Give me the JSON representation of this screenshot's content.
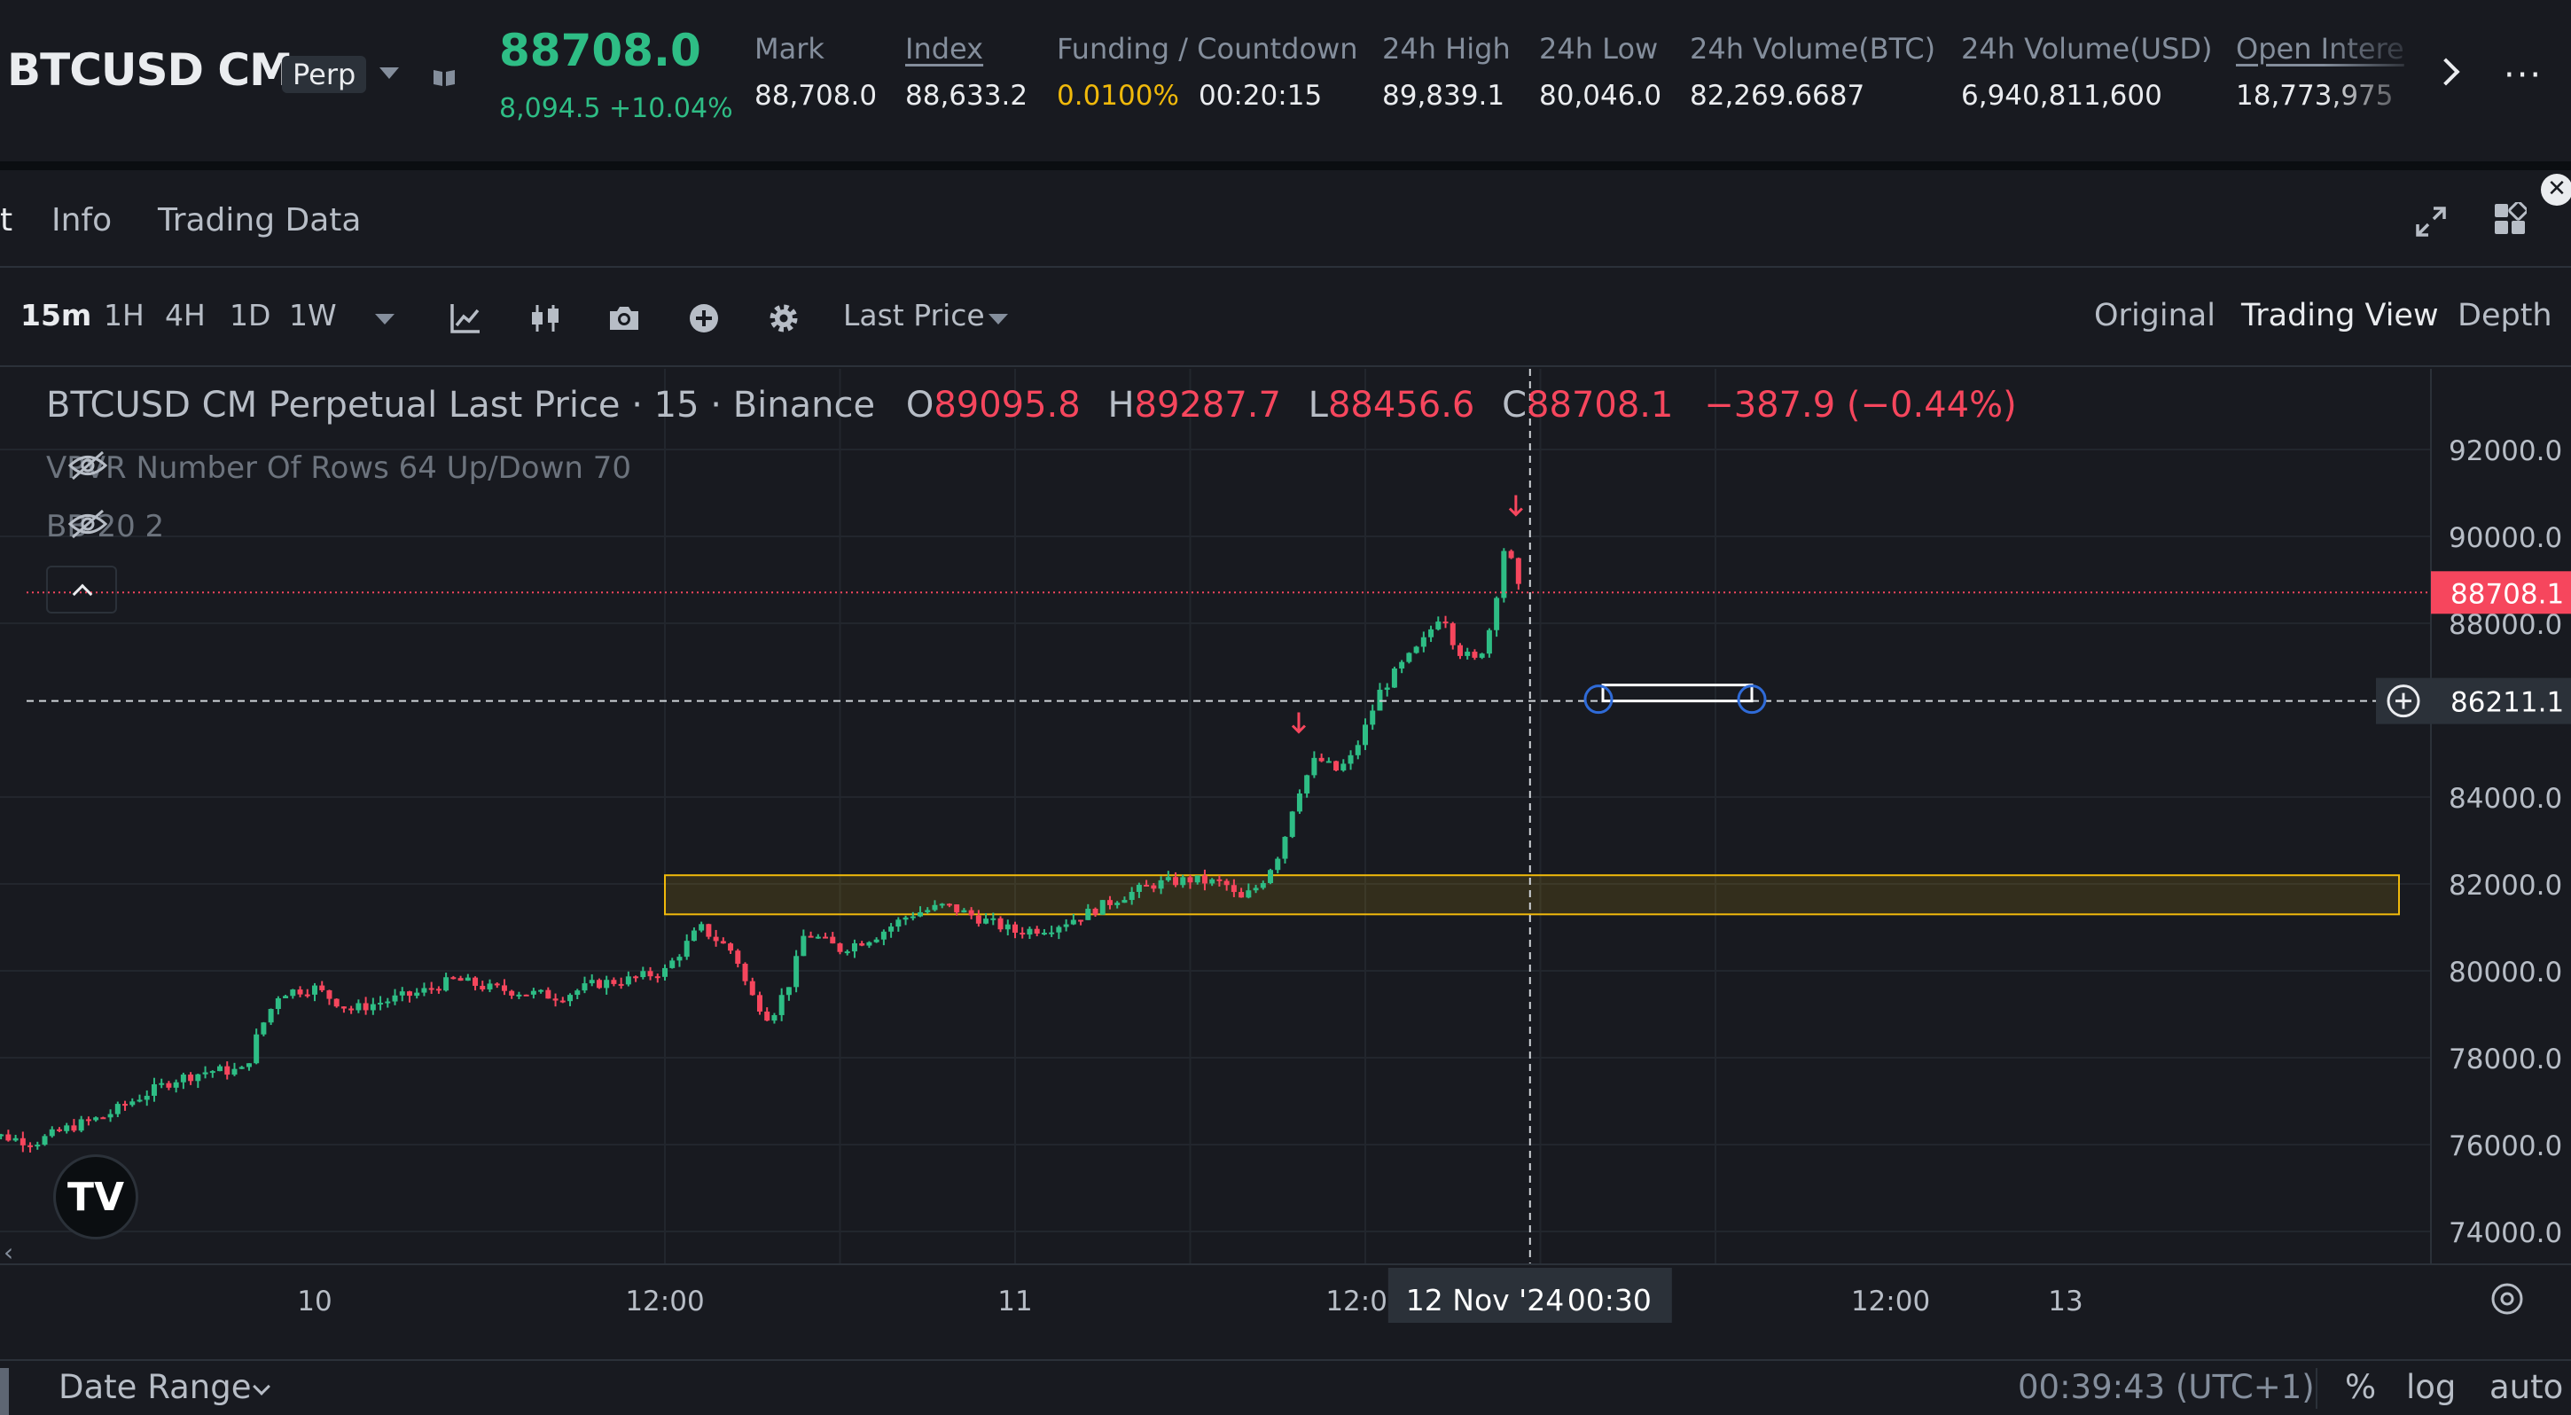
{
  "header": {
    "symbol": "BTCUSD CM",
    "badge": "Perp",
    "last_price": "88708.0",
    "change": "8,094.5 +10.04%",
    "stats": [
      {
        "label": "Mark",
        "value": "88,708.0"
      },
      {
        "label": "Index",
        "value": "88,633.2"
      },
      {
        "label": "Funding / Countdown",
        "value": "0.0100%",
        "value2": "00:20:15"
      },
      {
        "label": "24h High",
        "value": "89,839.1"
      },
      {
        "label": "24h Low",
        "value": "80,046.0"
      },
      {
        "label": "24h Volume(BTC)",
        "value": "82,269.6687"
      },
      {
        "label": "24h Volume(USD)",
        "value": "6,940,811,600"
      },
      {
        "label": "Open Intere",
        "value": "18,773,975"
      }
    ]
  },
  "tabs": [
    "t",
    "Info",
    "Trading Data"
  ],
  "toolbar": {
    "timeframes": [
      "15m",
      "1H",
      "4H",
      "1D",
      "1W"
    ],
    "active_timeframe": "15m",
    "price_type": "Last Price",
    "views": [
      "Original",
      "Trading View",
      "Depth"
    ],
    "active_view": "Trading View",
    "icons": [
      "indicator-icon",
      "candle-type-icon",
      "camera-icon",
      "plus-circle-icon",
      "gear-icon"
    ]
  },
  "legend": {
    "title": "BTCUSD CM Perpetual Last Price · 15 · Binance",
    "o_label": "O",
    "o": "89095.8",
    "h_label": "H",
    "h": "89287.7",
    "l_label": "L",
    "l": "88456.6",
    "c_label": "C",
    "c": "88708.1",
    "change": "−387.9 (−0.44%)"
  },
  "indicators": [
    {
      "label": "VPVR Number Of Rows 64 Up/Down 70"
    },
    {
      "label": "BB 20 2"
    }
  ],
  "chart_data": {
    "type": "candlestick",
    "interval": "15m",
    "y_ticks": [
      92000,
      90000,
      88000,
      84000,
      82000,
      80000,
      78000,
      76000,
      74000
    ],
    "y_tick_labels": [
      "92000.0",
      "90000.0",
      "88000.0",
      "84000.0",
      "82000.0",
      "80000.0",
      "78000.0",
      "76000.0",
      "74000.0"
    ],
    "x_tick_labels": [
      "10",
      "12:00",
      "11",
      "12:00",
      "12 Nov '24",
      "00:30",
      "12:00",
      "13"
    ],
    "last_price": 88708.1,
    "last_price_label": "88708.1",
    "crosshair_price": 86211.1,
    "crosshair_price_label": "86211.1",
    "crosshair_time_label": "12 Nov '24",
    "crosshair_time_extra": "00:30",
    "highlight_zone": {
      "low": 81300,
      "high": 82200
    },
    "close_path": [
      [
        0,
        76350
      ],
      [
        0.05,
        76200
      ],
      [
        0.1,
        76050
      ],
      [
        0.15,
        76400
      ],
      [
        0.2,
        76650
      ],
      [
        0.25,
        77100
      ],
      [
        0.3,
        77500
      ],
      [
        0.35,
        77700
      ],
      [
        0.4,
        77700
      ],
      [
        0.42,
        78600
      ],
      [
        0.45,
        79500
      ],
      [
        0.5,
        79600
      ],
      [
        0.55,
        79100
      ],
      [
        0.6,
        79300
      ],
      [
        0.65,
        79500
      ],
      [
        0.7,
        79800
      ],
      [
        0.75,
        79600
      ],
      [
        0.8,
        79500
      ],
      [
        0.85,
        79400
      ],
      [
        0.9,
        79700
      ],
      [
        0.95,
        79800
      ],
      [
        1.0,
        80000
      ],
      [
        1.05,
        81000
      ],
      [
        1.1,
        80400
      ],
      [
        1.12,
        79500
      ],
      [
        1.15,
        78900
      ],
      [
        1.18,
        79800
      ],
      [
        1.2,
        80900
      ],
      [
        1.25,
        80500
      ],
      [
        1.3,
        80800
      ],
      [
        1.35,
        81300
      ],
      [
        1.4,
        81500
      ],
      [
        1.45,
        81200
      ],
      [
        1.5,
        80900
      ],
      [
        1.55,
        81000
      ],
      [
        1.6,
        81300
      ],
      [
        1.65,
        81700
      ],
      [
        1.7,
        82000
      ],
      [
        1.75,
        82100
      ],
      [
        1.8,
        82000
      ],
      [
        1.82,
        81600
      ],
      [
        1.85,
        82000
      ],
      [
        1.88,
        82800
      ],
      [
        1.9,
        84000
      ],
      [
        1.93,
        84900
      ],
      [
        1.96,
        84600
      ],
      [
        1.98,
        84900
      ],
      [
        2.0,
        85600
      ],
      [
        2.02,
        86400
      ],
      [
        2.05,
        87000
      ],
      [
        2.08,
        87500
      ],
      [
        2.11,
        88300
      ],
      [
        2.13,
        87400
      ],
      [
        2.16,
        87100
      ],
      [
        2.18,
        88000
      ],
      [
        2.2,
        89900
      ],
      [
        2.22,
        88708
      ]
    ]
  },
  "bottom": {
    "date_range": "Date Range",
    "clock": "00:39:43 (UTC+1)",
    "options": [
      "%",
      "log",
      "auto"
    ]
  },
  "colors": {
    "up": "#2ebd85",
    "down": "#f6465d",
    "accent": "#f0b90b",
    "background": "#181a20"
  }
}
